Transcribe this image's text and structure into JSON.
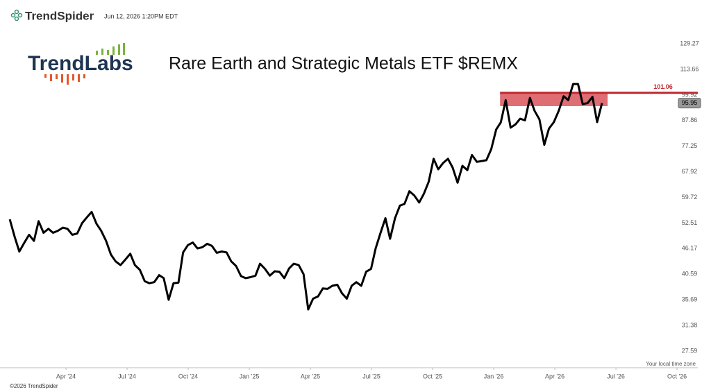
{
  "chart_data": {
    "type": "line",
    "brand": "TrendSpider",
    "timestamp": "Jun 12, 2026 1:20PM EDT",
    "logo": "TrendLabs",
    "title": "Rare Earth and Strategic Metals ETF $REMX",
    "timezone_note": "Your local time zone",
    "copyright": "©2026 TrendSpider",
    "log_scale": true,
    "grid": false,
    "xlim": [
      2023.98,
      2026.835
    ],
    "ylim": [
      25.37,
      137.7
    ],
    "xticks": [
      {
        "value": 2024.25,
        "label": "Apr '24"
      },
      {
        "value": 2024.5,
        "label": "Jul '24"
      },
      {
        "value": 2024.75,
        "label": "Oct '24"
      },
      {
        "value": 2025.0,
        "label": "Jan '25"
      },
      {
        "value": 2025.25,
        "label": "Apr '25"
      },
      {
        "value": 2025.5,
        "label": "Jul '25"
      },
      {
        "value": 2025.75,
        "label": "Oct '25"
      },
      {
        "value": 2026.0,
        "label": "Jan '26"
      },
      {
        "value": 2026.25,
        "label": "Apr '26"
      },
      {
        "value": 2026.5,
        "label": "Jul '26"
      },
      {
        "value": 2026.75,
        "label": "Oct '26"
      }
    ],
    "yticks": [
      27.59,
      31.38,
      35.69,
      40.59,
      46.17,
      52.51,
      59.72,
      67.92,
      77.25,
      87.86,
      99.92,
      113.66,
      129.27
    ],
    "resistance": {
      "value": 101.06,
      "color": "#c0272d",
      "start": 2026.026
    },
    "zone": {
      "ylim": [
        94.5,
        101.06
      ],
      "xlim": [
        2026.026,
        2026.466
      ],
      "color": "#d9545c"
    },
    "x": [
      2024.02,
      2024.04,
      2024.059,
      2024.079,
      2024.099,
      2024.119,
      2024.138,
      2024.158,
      2024.178,
      2024.197,
      2024.217,
      2024.237,
      2024.256,
      2024.276,
      2024.296,
      2024.316,
      2024.335,
      2024.355,
      2024.375,
      2024.394,
      2024.414,
      2024.434,
      2024.453,
      2024.473,
      2024.493,
      2024.513,
      2024.532,
      2024.552,
      2024.572,
      2024.591,
      2024.611,
      2024.631,
      2024.65,
      2024.67,
      2024.69,
      2024.71,
      2024.729,
      2024.749,
      2024.769,
      2024.788,
      2024.808,
      2024.828,
      2024.847,
      2024.867,
      2024.887,
      2024.907,
      2024.926,
      2024.946,
      2024.966,
      2024.985,
      2025.005,
      2025.025,
      2025.044,
      2025.064,
      2025.084,
      2025.104,
      2025.123,
      2025.143,
      2025.163,
      2025.182,
      2025.202,
      2025.222,
      2025.241,
      2025.261,
      2025.281,
      2025.301,
      2025.32,
      2025.34,
      2025.36,
      2025.379,
      2025.399,
      2025.419,
      2025.438,
      2025.458,
      2025.478,
      2025.498,
      2025.517,
      2025.537,
      2025.557,
      2025.576,
      2025.596,
      2025.616,
      2025.635,
      2025.655,
      2025.675,
      2025.695,
      2025.714,
      2025.734,
      2025.754,
      2025.773,
      2025.793,
      2025.813,
      2025.832,
      2025.852,
      2025.872,
      2025.892,
      2025.911,
      2025.931,
      2025.951,
      2025.97,
      2025.99,
      2026.01,
      2026.029,
      2026.049,
      2026.069,
      2026.089,
      2026.108,
      2026.128,
      2026.148,
      2026.167,
      2026.187,
      2026.207,
      2026.226,
      2026.246,
      2026.266,
      2026.286,
      2026.305,
      2026.325,
      2026.345,
      2026.364,
      2026.384,
      2026.404,
      2026.423,
      2026.443
    ],
    "series": [
      {
        "name": "REMX",
        "color": "#000000",
        "values": [
          53.5,
          49,
          45.5,
          47.5,
          49.5,
          48,
          53,
          50,
          51,
          50,
          50.5,
          51.3,
          51,
          49.5,
          49.8,
          52.5,
          54,
          55.5,
          52.3,
          50.5,
          48,
          44.8,
          43.3,
          42.5,
          43.7,
          45,
          42.5,
          41.5,
          39.2,
          38.8,
          39,
          40.4,
          39.8,
          35.7,
          38.8,
          38.9,
          45.3,
          47,
          47.6,
          46.2,
          46.5,
          47.3,
          46.8,
          45.2,
          45.5,
          45.3,
          43.3,
          42.3,
          40.2,
          39.8,
          40,
          40.3,
          42.8,
          41.7,
          40.3,
          41.2,
          41.1,
          39.8,
          41.8,
          42.8,
          42.5,
          40.6,
          34,
          35.9,
          36.3,
          37.8,
          37.7,
          38.3,
          38.5,
          36.9,
          35.9,
          38.3,
          39,
          38.3,
          41.1,
          41.7,
          46.2,
          50,
          53.8,
          48.5,
          53.8,
          57.3,
          57.8,
          61.6,
          60.3,
          58.2,
          60.8,
          64.6,
          72.5,
          68.8,
          71,
          72.5,
          69.4,
          64.3,
          70,
          68.5,
          73.9,
          71.4,
          71.7,
          72,
          76.1,
          84,
          87.1,
          97.4,
          84.8,
          86.2,
          88.7,
          88,
          98.5,
          92.3,
          88.4,
          77.8,
          84.4,
          87.2,
          92.3,
          99.3,
          97.4,
          105.6,
          105.6,
          95.5,
          95.9,
          99,
          87.2,
          95.95
        ]
      }
    ]
  }
}
